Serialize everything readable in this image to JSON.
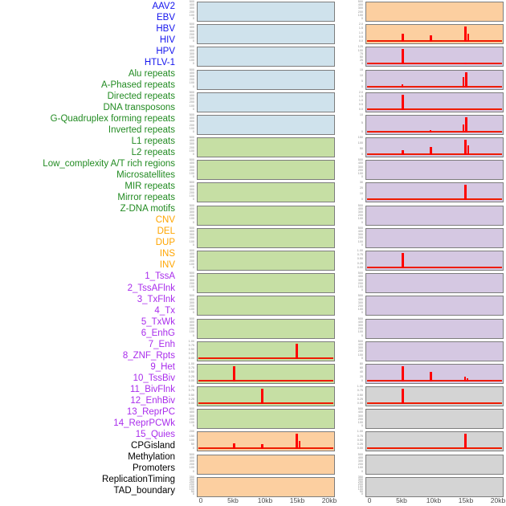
{
  "chart_data": {
    "type": "bar",
    "title": "",
    "xlabel": "",
    "ylabel": "",
    "x_axis": {
      "labels": [
        "0",
        "5kb",
        "10kb",
        "15kb",
        "20kb"
      ],
      "kb": [
        0,
        5,
        10,
        15,
        20
      ],
      "range_kb": [
        0,
        20
      ]
    },
    "legend": "none",
    "grid": "off",
    "groups": {
      "virus": {
        "label_color": "#1414ee",
        "bg_color": "#cfe2ec"
      },
      "repeat": {
        "label_color": "#228b22",
        "bg_color": "#c6dfa4"
      },
      "sv": {
        "label_color": "#ffa500",
        "bg_color": "#fccfa0"
      },
      "chromatin": {
        "label_color": "#a92cec",
        "bg_color": "#d5c8e2"
      },
      "other": {
        "label_color": "#000000",
        "bg_color": "#d4d4d4"
      }
    },
    "colors": {
      "spike": "#ff0000",
      "baseline": "#ee1c00",
      "plot_border": "#7d7d7d",
      "ytick_text": "#8a8a8a",
      "xtick_text": "#4d4d4d"
    },
    "layout_note": "44 tracks: first 22 in left plot column (top to bottom), last 22 in right plot column; spikes are red bars, heights as fraction of panel height",
    "tracks": [
      {
        "label": "AAV2",
        "group": "virus",
        "yticks": [
          "500",
          "400",
          "300",
          "200",
          "100",
          "0"
        ],
        "baseline": false,
        "spikes": []
      },
      {
        "label": "EBV",
        "group": "virus",
        "yticks": [
          "500",
          "400",
          "300",
          "200",
          "100",
          "0"
        ],
        "baseline": false,
        "spikes": []
      },
      {
        "label": "HBV",
        "group": "virus",
        "yticks": [
          "500",
          "400",
          "300",
          "200",
          "100",
          "0"
        ],
        "baseline": false,
        "spikes": []
      },
      {
        "label": "HIV",
        "group": "virus",
        "yticks": [
          "500",
          "400",
          "300",
          "200",
          "100",
          "0"
        ],
        "baseline": false,
        "spikes": []
      },
      {
        "label": "HPV",
        "group": "virus",
        "yticks": [
          "500",
          "400",
          "300",
          "200",
          "100",
          "0"
        ],
        "baseline": false,
        "spikes": []
      },
      {
        "label": "HTLV-1",
        "group": "virus",
        "yticks": [
          "500",
          "400",
          "300",
          "200",
          "100",
          "0"
        ],
        "baseline": false,
        "spikes": []
      },
      {
        "label": "Alu repeats",
        "group": "repeat",
        "yticks": [
          "500",
          "400",
          "300",
          "200",
          "100",
          "0"
        ],
        "baseline": false,
        "spikes": []
      },
      {
        "label": "A-Phased repeats",
        "group": "repeat",
        "yticks": [
          "500",
          "400",
          "300",
          "200",
          "100",
          "0"
        ],
        "baseline": false,
        "spikes": []
      },
      {
        "label": "Directed repeats",
        "group": "repeat",
        "yticks": [
          "500",
          "400",
          "300",
          "200",
          "100",
          "0"
        ],
        "baseline": false,
        "spikes": []
      },
      {
        "label": "DNA transposons",
        "group": "repeat",
        "yticks": [
          "500",
          "400",
          "300",
          "200",
          "100",
          "0"
        ],
        "baseline": false,
        "spikes": []
      },
      {
        "label": "G-Quadruplex forming repeats",
        "group": "repeat",
        "yticks": [
          "500",
          "400",
          "300",
          "200",
          "100",
          "0"
        ],
        "baseline": false,
        "spikes": []
      },
      {
        "label": "Inverted repeats",
        "group": "repeat",
        "yticks": [
          "500",
          "400",
          "300",
          "200",
          "100",
          "0"
        ],
        "baseline": false,
        "spikes": []
      },
      {
        "label": "L1 repeats",
        "group": "repeat",
        "yticks": [
          "500",
          "400",
          "300",
          "200",
          "100",
          "0"
        ],
        "baseline": false,
        "spikes": []
      },
      {
        "label": "L2 repeats",
        "group": "repeat",
        "yticks": [
          "500",
          "400",
          "300",
          "200",
          "100",
          "0"
        ],
        "baseline": false,
        "spikes": []
      },
      {
        "label": "Low_complexity A/T rich regions",
        "group": "repeat",
        "yticks": [
          "500",
          "400",
          "300",
          "200",
          "100",
          "0"
        ],
        "baseline": false,
        "spikes": []
      },
      {
        "label": "Microsatellites",
        "group": "repeat",
        "yticks": [
          "1.00",
          "0.75",
          "0.50",
          "0.25",
          "0.00"
        ],
        "baseline": true,
        "spikes": [
          {
            "kb": 14.8,
            "h": 1.0,
            "w": 3
          }
        ]
      },
      {
        "label": "MIR repeats",
        "group": "repeat",
        "yticks": [
          "1.00",
          "0.75",
          "0.50",
          "0.25",
          "0.00"
        ],
        "baseline": true,
        "spikes": [
          {
            "kb": 5.0,
            "h": 1.0,
            "w": 3
          }
        ]
      },
      {
        "label": "Mirror repeats",
        "group": "repeat",
        "yticks": [
          "1.00",
          "0.75",
          "0.50",
          "0.25",
          "0.00"
        ],
        "baseline": true,
        "spikes": [
          {
            "kb": 9.4,
            "h": 1.0,
            "w": 3
          }
        ]
      },
      {
        "label": "Z-DNA motifs",
        "group": "repeat",
        "yticks": [
          "500",
          "400",
          "300",
          "200",
          "100",
          "0"
        ],
        "baseline": false,
        "spikes": []
      },
      {
        "label": "CNV",
        "group": "sv",
        "yticks": [
          "200",
          "150",
          "100",
          "50",
          "0"
        ],
        "baseline": true,
        "spikes": [
          {
            "kb": 5.0,
            "h": 0.38,
            "w": 3
          },
          {
            "kb": 9.4,
            "h": 0.33,
            "w": 3
          },
          {
            "kb": 14.8,
            "h": 1.0,
            "w": 3
          },
          {
            "kb": 15.2,
            "h": 0.52,
            "w": 2
          }
        ]
      },
      {
        "label": "DEL",
        "group": "sv",
        "yticks": [
          "500",
          "400",
          "300",
          "200",
          "100",
          "0"
        ],
        "baseline": false,
        "spikes": []
      },
      {
        "label": "DUP",
        "group": "sv",
        "yticks": [
          "350",
          "300",
          "250",
          "200",
          "150",
          "100",
          "50",
          "0"
        ],
        "baseline": false,
        "spikes": []
      },
      {
        "label": "INS",
        "group": "sv",
        "yticks": [
          "500",
          "400",
          "300",
          "200",
          "100",
          "0"
        ],
        "baseline": false,
        "spikes": []
      },
      {
        "label": "INV",
        "group": "sv",
        "yticks": [
          "2.0",
          "1.5",
          "1.0",
          "0.5",
          "0.0"
        ],
        "baseline": true,
        "spikes": [
          {
            "kb": 5.0,
            "h": 0.5,
            "w": 3
          },
          {
            "kb": 9.4,
            "h": 0.4,
            "w": 3
          },
          {
            "kb": 14.8,
            "h": 1.0,
            "w": 3
          },
          {
            "kb": 15.2,
            "h": 0.55,
            "w": 2
          }
        ]
      },
      {
        "label": "1_TssA",
        "group": "chromatin",
        "yticks": [
          "125",
          "100",
          "75",
          "50",
          "25",
          "0"
        ],
        "baseline": true,
        "spikes": [
          {
            "kb": 5.0,
            "h": 1.0,
            "w": 3
          },
          {
            "kb": 14.8,
            "h": 0.1,
            "w": 3
          }
        ]
      },
      {
        "label": "2_TssAFlnk",
        "group": "chromatin",
        "yticks": [
          "15",
          "10",
          "5",
          "0"
        ],
        "baseline": true,
        "spikes": [
          {
            "kb": 5.0,
            "h": 0.2,
            "w": 2
          },
          {
            "kb": 14.5,
            "h": 0.7,
            "w": 2
          },
          {
            "kb": 14.9,
            "h": 1.0,
            "w": 3
          }
        ]
      },
      {
        "label": "3_TxFlnk",
        "group": "chromatin",
        "yticks": [
          "2.0",
          "1.5",
          "1.0",
          "0.5",
          "0.0"
        ],
        "baseline": true,
        "spikes": [
          {
            "kb": 5.0,
            "h": 1.0,
            "w": 3
          }
        ]
      },
      {
        "label": "4_Tx",
        "group": "chromatin",
        "yticks": [
          "10",
          "5",
          "0"
        ],
        "baseline": true,
        "spikes": [
          {
            "kb": 9.4,
            "h": 0.15,
            "w": 2
          },
          {
            "kb": 14.5,
            "h": 0.5,
            "w": 2
          },
          {
            "kb": 14.9,
            "h": 1.0,
            "w": 3
          }
        ]
      },
      {
        "label": "5_TxWk",
        "group": "chromatin",
        "yticks": [
          "150",
          "100",
          "50",
          "0"
        ],
        "baseline": true,
        "spikes": [
          {
            "kb": 5.0,
            "h": 0.33,
            "w": 3
          },
          {
            "kb": 9.4,
            "h": 0.5,
            "w": 3
          },
          {
            "kb": 14.8,
            "h": 1.0,
            "w": 3
          },
          {
            "kb": 15.2,
            "h": 0.65,
            "w": 2
          }
        ]
      },
      {
        "label": "6_EnhG",
        "group": "chromatin",
        "yticks": [
          "500",
          "400",
          "300",
          "200",
          "100",
          "0"
        ],
        "baseline": false,
        "spikes": []
      },
      {
        "label": "7_Enh",
        "group": "chromatin",
        "yticks": [
          "30",
          "20",
          "10",
          "0"
        ],
        "baseline": true,
        "spikes": [
          {
            "kb": 14.8,
            "h": 1.0,
            "w": 3
          }
        ]
      },
      {
        "label": "8_ZNF_Rpts",
        "group": "chromatin",
        "yticks": [
          "500",
          "400",
          "300",
          "200",
          "100",
          "0"
        ],
        "baseline": false,
        "spikes": []
      },
      {
        "label": "9_Het",
        "group": "chromatin",
        "yticks": [
          "500",
          "400",
          "300",
          "200",
          "100",
          "0"
        ],
        "baseline": false,
        "spikes": []
      },
      {
        "label": "10_TssBiv",
        "group": "chromatin",
        "yticks": [
          "1.00",
          "0.75",
          "0.50",
          "0.25",
          "0.00"
        ],
        "baseline": true,
        "spikes": [
          {
            "kb": 5.0,
            "h": 1.0,
            "w": 3
          }
        ]
      },
      {
        "label": "11_BivFlnk",
        "group": "chromatin",
        "yticks": [
          "500",
          "400",
          "300",
          "200",
          "100",
          "0"
        ],
        "baseline": false,
        "spikes": []
      },
      {
        "label": "12_EnhBiv",
        "group": "chromatin",
        "yticks": [
          "500",
          "400",
          "300",
          "200",
          "100",
          "0"
        ],
        "baseline": false,
        "spikes": []
      },
      {
        "label": "13_ReprPC",
        "group": "chromatin",
        "yticks": [
          "500",
          "400",
          "300",
          "200",
          "100",
          "0"
        ],
        "baseline": false,
        "spikes": []
      },
      {
        "label": "14_ReprPCWk",
        "group": "chromatin",
        "yticks": [
          "500",
          "400",
          "300",
          "200",
          "100",
          "0"
        ],
        "baseline": false,
        "spikes": []
      },
      {
        "label": "15_Quies",
        "group": "chromatin",
        "yticks": [
          "80",
          "60",
          "40",
          "20",
          "0"
        ],
        "baseline": true,
        "spikes": [
          {
            "kb": 5.0,
            "h": 1.0,
            "w": 3
          },
          {
            "kb": 9.4,
            "h": 0.65,
            "w": 3
          },
          {
            "kb": 14.7,
            "h": 0.3,
            "w": 2
          },
          {
            "kb": 15.1,
            "h": 0.2,
            "w": 2
          }
        ]
      },
      {
        "label": "CPGisland",
        "group": "other",
        "yticks": [
          "1.00",
          "0.75",
          "0.50",
          "0.25",
          "0.00"
        ],
        "baseline": true,
        "spikes": [
          {
            "kb": 5.0,
            "h": 1.0,
            "w": 3
          }
        ]
      },
      {
        "label": "Methylation",
        "group": "other",
        "yticks": [
          "500",
          "400",
          "300",
          "200",
          "100",
          "0"
        ],
        "baseline": false,
        "spikes": []
      },
      {
        "label": "Promoters",
        "group": "other",
        "yticks": [
          "1.00",
          "0.75",
          "0.50",
          "0.25",
          "0.00"
        ],
        "baseline": true,
        "spikes": [
          {
            "kb": 14.8,
            "h": 1.0,
            "w": 3
          }
        ]
      },
      {
        "label": "ReplicationTiming",
        "group": "other",
        "yticks": [
          "500",
          "400",
          "300",
          "200",
          "100",
          "0"
        ],
        "baseline": false,
        "spikes": []
      },
      {
        "label": "TAD_boundary",
        "group": "other",
        "yticks": [
          "350",
          "300",
          "250",
          "200",
          "150",
          "100",
          "50",
          "0"
        ],
        "baseline": false,
        "spikes": []
      }
    ]
  }
}
